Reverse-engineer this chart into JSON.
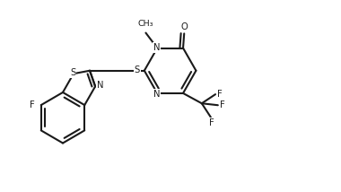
{
  "bg_color": "#ffffff",
  "line_color": "#1a1a1a",
  "line_width": 1.5,
  "figsize": [
    3.8,
    2.14
  ],
  "dpi": 100,
  "xlim": [
    0,
    9.5
  ],
  "ylim": [
    0,
    5.3
  ]
}
